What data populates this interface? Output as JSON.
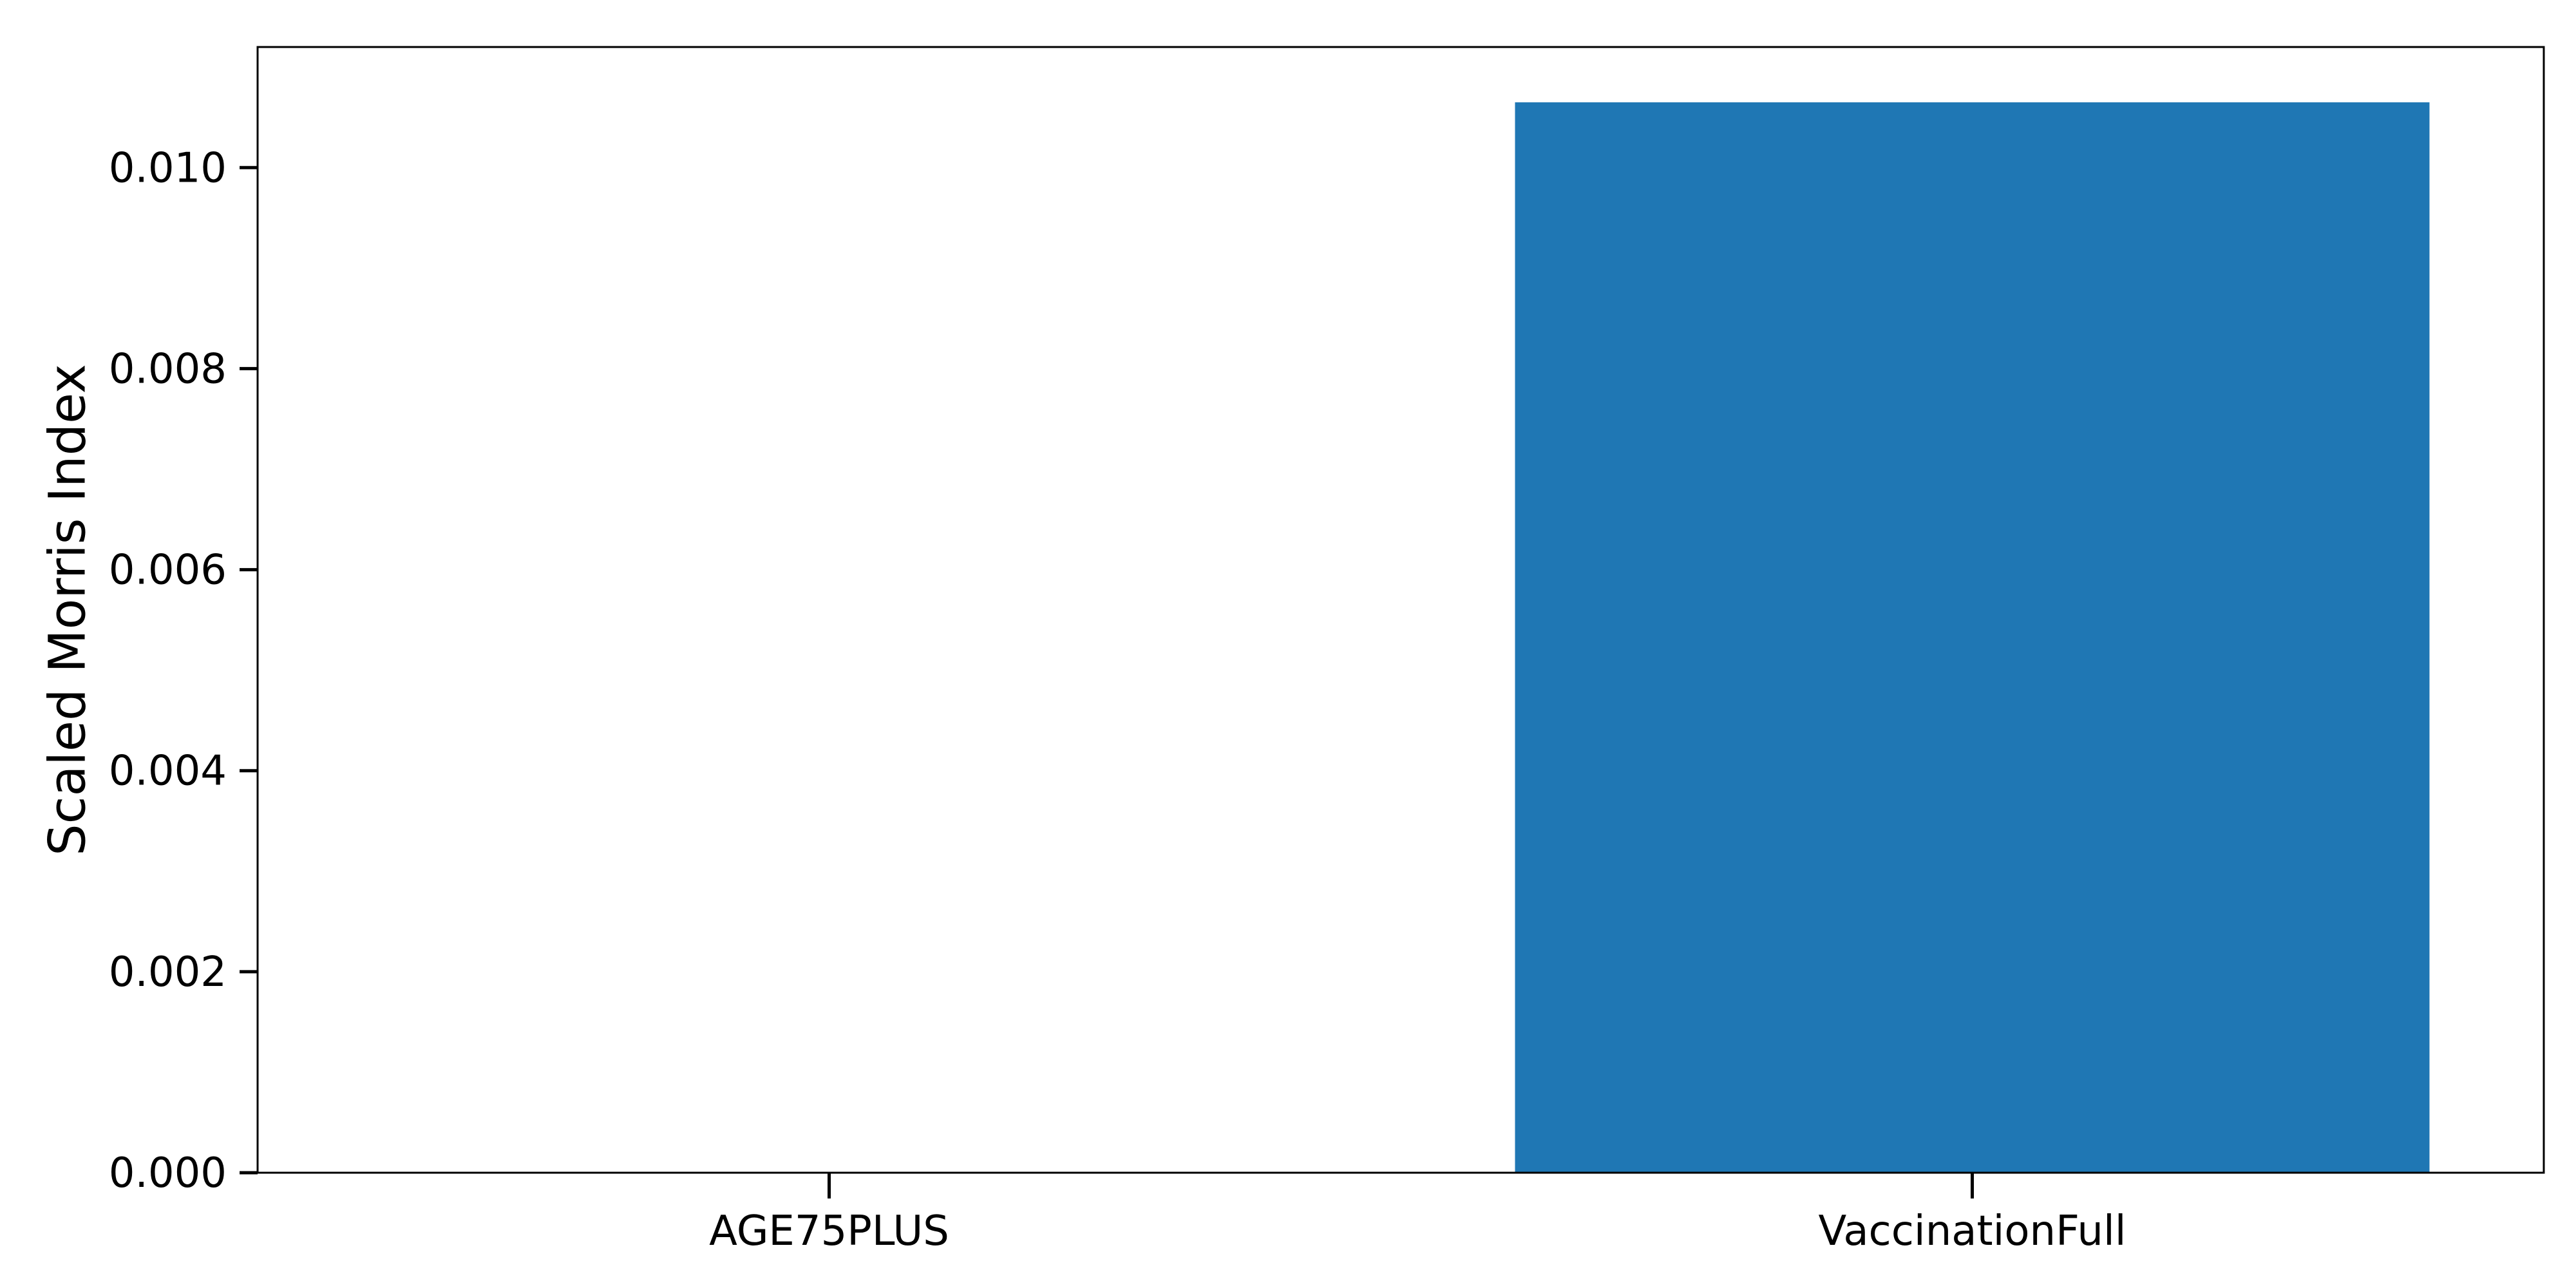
{
  "chart_data": {
    "type": "bar",
    "title": "",
    "xlabel": "",
    "ylabel": "Scaled Morris Index",
    "categories": [
      "AGE75PLUS",
      "VaccinationFull"
    ],
    "values": [
      0.0,
      0.01065
    ],
    "ylim": [
      0.0,
      0.0112
    ],
    "yticks": [
      0.0,
      0.002,
      0.004,
      0.006,
      0.008,
      0.01
    ],
    "ytick_labels": [
      "0.000",
      "0.002",
      "0.004",
      "0.006",
      "0.008",
      "0.010"
    ],
    "bar_color": "#1f77b4",
    "grid": false,
    "legend": "none"
  }
}
